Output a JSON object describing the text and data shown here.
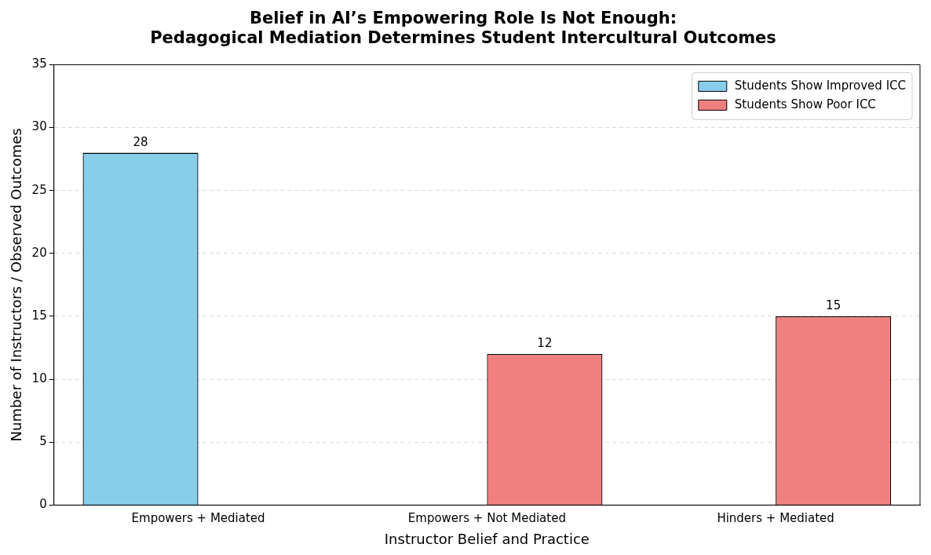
{
  "chart_data": {
    "type": "bar",
    "title": "Belief in AI’s Empowering Role Is Not Enough:\nPedagogical Mediation Determines Student Intercultural Outcomes",
    "xlabel": "Instructor Belief and Practice",
    "ylabel": "Number of Instructors / Observed Outcomes",
    "categories": [
      "Empowers + Mediated",
      "Empowers + Not Mediated",
      "Hinders + Mediated"
    ],
    "series": [
      {
        "name": "Students Show Improved ICC",
        "color": "#87ceeb",
        "values": [
          28,
          0,
          0
        ],
        "value_labels": [
          "28",
          null,
          null
        ]
      },
      {
        "name": "Students Show Poor ICC",
        "color": "#f08080",
        "values": [
          0,
          12,
          15
        ],
        "value_labels": [
          null,
          "12",
          "15"
        ]
      }
    ],
    "ylim": [
      0,
      35
    ],
    "yticks": [
      0,
      5,
      10,
      15,
      20,
      25,
      30,
      35
    ],
    "grid": "y",
    "legend": "top right"
  }
}
